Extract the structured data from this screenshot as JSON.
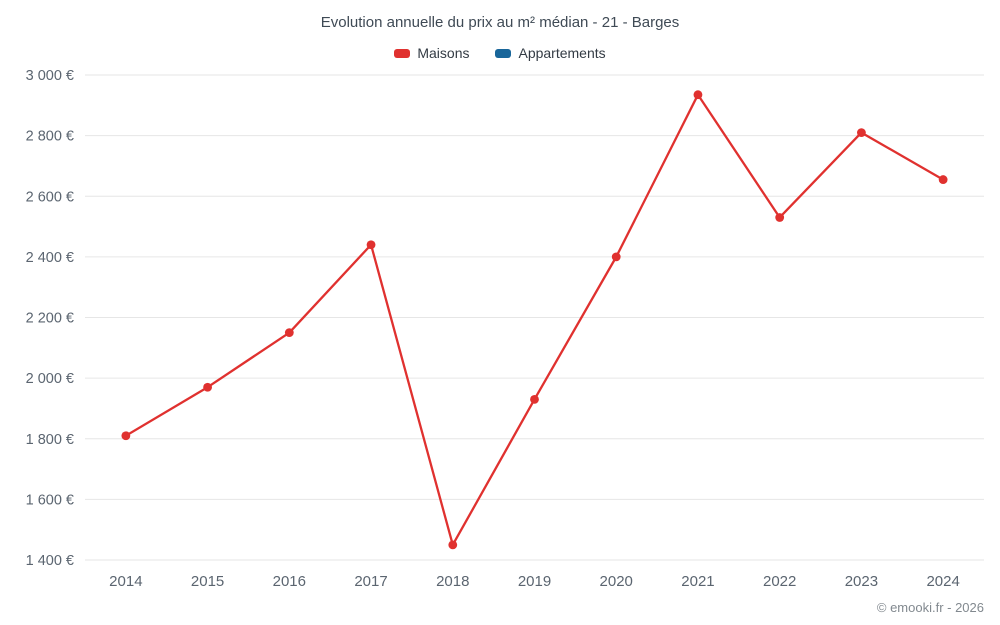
{
  "header": {
    "title": "Evolution annuelle du prix au m² médian - 21 - Barges"
  },
  "legend": {
    "items": [
      {
        "label": "Maisons",
        "color": "#e0312f"
      },
      {
        "label": "Appartements",
        "color": "#19669a"
      }
    ]
  },
  "footer": {
    "copyright": "© emooki.fr - 2026"
  },
  "chart_data": {
    "type": "line",
    "title": "Evolution annuelle du prix au m² médian - 21 - Barges",
    "categories": [
      2014,
      2015,
      2016,
      2017,
      2018,
      2019,
      2020,
      2021,
      2022,
      2023,
      2024
    ],
    "series": [
      {
        "name": "Maisons",
        "color": "#e0312f",
        "values": [
          1810,
          1970,
          2150,
          2440,
          1450,
          1930,
          2400,
          2935,
          2530,
          2810,
          2655
        ]
      },
      {
        "name": "Appartements",
        "color": "#19669a",
        "values": []
      }
    ],
    "xlabel": "",
    "ylabel": "",
    "ylim": [
      1400,
      3000
    ],
    "y_tick_step": 200,
    "y_tick_suffix": " €",
    "grid": "horizontal",
    "legend_position": "top",
    "grid_color": "#e6e6e6",
    "tick_label_color": "#5b6570"
  }
}
